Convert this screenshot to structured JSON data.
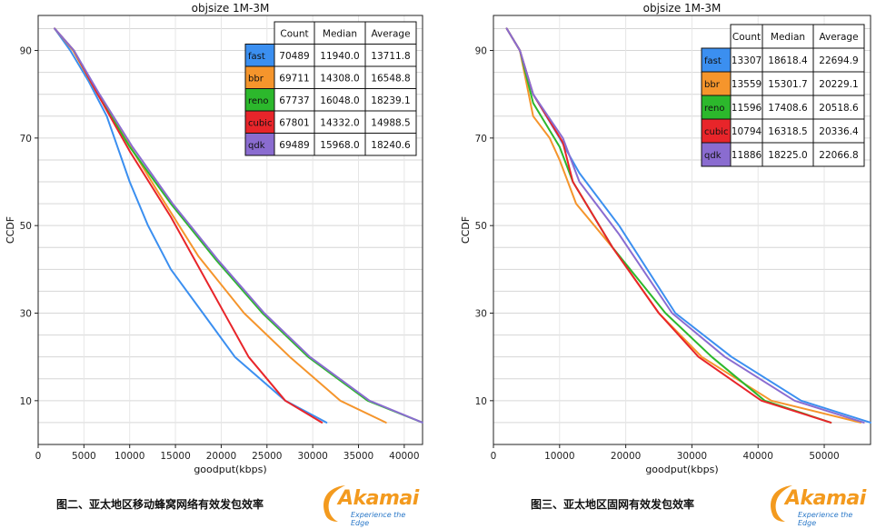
{
  "chart_data": [
    {
      "type": "line",
      "title": "objsize 1M-3M",
      "xlabel": "goodput(kbps)",
      "ylabel": "CCDF",
      "xlim": [
        0,
        42000
      ],
      "ylim": [
        0,
        98
      ],
      "xticks": [
        0,
        5000,
        10000,
        15000,
        20000,
        25000,
        30000,
        35000,
        40000
      ],
      "yticks": [
        10,
        30,
        50,
        70,
        90
      ],
      "grid": true,
      "table": {
        "headers": [
          "Count",
          "Median",
          "Average"
        ],
        "rows": [
          {
            "label": "fast",
            "color": "#3b8ff0",
            "values": [
              "70489",
              "11940.0",
              "13711.8"
            ]
          },
          {
            "label": "bbr",
            "color": "#f5952c",
            "values": [
              "69711",
              "14308.0",
              "16548.8"
            ]
          },
          {
            "label": "reno",
            "color": "#2cb82c",
            "values": [
              "67737",
              "16048.0",
              "18239.1"
            ]
          },
          {
            "label": "cubic",
            "color": "#e8252a",
            "values": [
              "67801",
              "14332.0",
              "14988.5"
            ]
          },
          {
            "label": "qdk",
            "color": "#8a6cd0",
            "values": [
              "69489",
              "15968.0",
              "18240.6"
            ]
          }
        ]
      },
      "series": [
        {
          "name": "fast",
          "color": "#3b8ff0",
          "x": [
            1800,
            3500,
            5500,
            7500,
            10000,
            12000,
            14500,
            18000,
            21500,
            27000,
            31500
          ],
          "y": [
            95,
            90,
            83,
            75,
            60,
            50,
            40,
            30,
            20,
            10,
            5
          ]
        },
        {
          "name": "bbr",
          "color": "#f5952c",
          "x": [
            1800,
            3800,
            6500,
            9500,
            13000,
            17500,
            22500,
            27500,
            33000,
            38000
          ],
          "y": [
            95,
            90,
            80,
            70,
            58,
            43,
            30,
            20,
            10,
            5
          ]
        },
        {
          "name": "reno",
          "color": "#2cb82c",
          "x": [
            1800,
            3900,
            6500,
            10000,
            14500,
            19500,
            24500,
            29500,
            36000,
            42000
          ],
          "y": [
            95,
            90,
            80,
            68,
            55,
            42,
            30,
            20,
            10,
            5
          ]
        },
        {
          "name": "cubic",
          "color": "#e8252a",
          "x": [
            1800,
            3900,
            6500,
            10000,
            14500,
            19000,
            23000,
            27000,
            31000
          ],
          "y": [
            95,
            90,
            80,
            67,
            52,
            35,
            20,
            10,
            5
          ]
        },
        {
          "name": "qdk",
          "color": "#8a6cd0",
          "x": [
            1800,
            3900,
            6700,
            10300,
            14700,
            19700,
            24700,
            29700,
            36200,
            42000
          ],
          "y": [
            95,
            90,
            80,
            68,
            55,
            42,
            30,
            20,
            10,
            5
          ]
        }
      ],
      "caption": "图二、亚太地区移动蜂窝网络有效发包效率"
    },
    {
      "type": "line",
      "title": "objsize 1M-3M",
      "xlabel": "goodput(kbps)",
      "ylabel": "CCDF",
      "xlim": [
        0,
        57000
      ],
      "ylim": [
        0,
        98
      ],
      "xticks": [
        0,
        10000,
        20000,
        30000,
        40000,
        50000
      ],
      "yticks": [
        10,
        30,
        50,
        70,
        90
      ],
      "grid": true,
      "table": {
        "headers": [
          "Count",
          "Median",
          "Average"
        ],
        "rows": [
          {
            "label": "fast",
            "color": "#3b8ff0",
            "values": [
              "13307",
              "18618.4",
              "22694.9"
            ]
          },
          {
            "label": "bbr",
            "color": "#f5952c",
            "values": [
              "13559",
              "15301.7",
              "20229.1"
            ]
          },
          {
            "label": "reno",
            "color": "#2cb82c",
            "values": [
              "11596",
              "17408.6",
              "20518.6"
            ]
          },
          {
            "label": "cubic",
            "color": "#e8252a",
            "values": [
              "10794",
              "16318.5",
              "20336.4"
            ]
          },
          {
            "label": "qdk",
            "color": "#8a6cd0",
            "values": [
              "11886",
              "18225.0",
              "22066.8"
            ]
          }
        ]
      },
      "series": [
        {
          "name": "fast",
          "color": "#3b8ff0",
          "x": [
            2000,
            4000,
            6000,
            10000,
            13000,
            19000,
            27500,
            36000,
            46500,
            57000
          ],
          "y": [
            95,
            90,
            80,
            70,
            62,
            50,
            30,
            20,
            10,
            5
          ]
        },
        {
          "name": "bbr",
          "color": "#f5952c",
          "x": [
            2000,
            4000,
            6000,
            8500,
            10000,
            12500,
            18000,
            25000,
            31500,
            42000,
            55500
          ],
          "y": [
            95,
            90,
            75,
            70,
            65,
            55,
            45,
            30,
            20,
            10,
            5
          ]
        },
        {
          "name": "reno",
          "color": "#2cb82c",
          "x": [
            2000,
            4000,
            6000,
            10000,
            12000,
            18000,
            26000,
            33000,
            41000,
            51000
          ],
          "y": [
            95,
            90,
            78,
            68,
            60,
            45,
            30,
            20,
            10,
            5
          ]
        },
        {
          "name": "cubic",
          "color": "#e8252a",
          "x": [
            2000,
            4000,
            6000,
            10500,
            12000,
            18000,
            25000,
            31000,
            40500,
            51000
          ],
          "y": [
            95,
            90,
            80,
            69,
            60,
            45,
            30,
            20,
            10,
            5
          ]
        },
        {
          "name": "qdk",
          "color": "#8a6cd0",
          "x": [
            2000,
            4000,
            6000,
            10500,
            13000,
            19000,
            27000,
            35000,
            45500,
            56000
          ],
          "y": [
            95,
            90,
            80,
            70,
            60,
            48,
            30,
            20,
            10,
            5
          ]
        }
      ],
      "caption": "图三、亚太地区固网有效发包效率"
    }
  ],
  "logo": {
    "wordmark": "Akamai",
    "tagline": "Experience the Edge",
    "color": "#f39a1e",
    "tagline_color": "#2a78c8"
  }
}
